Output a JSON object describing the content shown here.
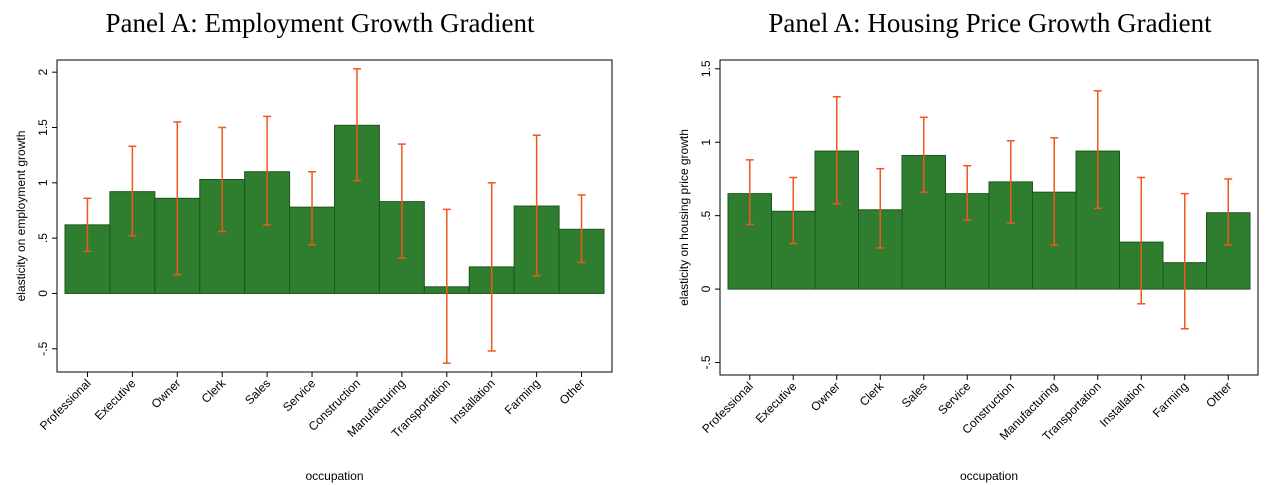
{
  "chart_data": [
    {
      "type": "bar",
      "title": "Panel A: Employment Growth Gradient",
      "xlabel": "occupation",
      "ylabel": "elasticity on employment growth",
      "categories": [
        "Professional",
        "Executive",
        "Owner",
        "Clerk",
        "Sales",
        "Service",
        "Construction",
        "Manufacturing",
        "Transportation",
        "Installation",
        "Farming",
        "Other"
      ],
      "values": [
        0.62,
        0.92,
        0.86,
        1.03,
        1.1,
        0.78,
        1.52,
        0.83,
        0.06,
        0.24,
        0.79,
        0.58
      ],
      "errors": [
        [
          0.38,
          0.86
        ],
        [
          0.52,
          1.33
        ],
        [
          0.17,
          1.55
        ],
        [
          0.56,
          1.5
        ],
        [
          0.62,
          1.6
        ],
        [
          0.44,
          1.1
        ],
        [
          1.02,
          2.03
        ],
        [
          0.32,
          1.35
        ],
        [
          -0.63,
          0.76
        ],
        [
          -0.52,
          1.0
        ],
        [
          0.16,
          1.43
        ],
        [
          0.28,
          0.89
        ]
      ],
      "color": "#2f7d2f",
      "error_color": "#f0561e",
      "ylim": [
        -0.71,
        2.11
      ],
      "yticks": [
        {
          "value": -0.5,
          "label": "-.5"
        },
        0,
        {
          "value": 0.5,
          "label": ".5"
        },
        1,
        1.5,
        2
      ]
    },
    {
      "type": "bar",
      "title": "Panel A: Housing Price Growth Gradient",
      "xlabel": "occupation",
      "ylabel": "elasticity on housing price growth",
      "categories": [
        "Professional",
        "Executive",
        "Owner",
        "Clerk",
        "Sales",
        "Service",
        "Construction",
        "Manufacturing",
        "Transportation",
        "Installation",
        "Farming",
        "Other"
      ],
      "values": [
        0.65,
        0.53,
        0.94,
        0.54,
        0.91,
        0.65,
        0.73,
        0.66,
        0.94,
        0.32,
        0.18,
        0.52
      ],
      "errors": [
        [
          0.44,
          0.88
        ],
        [
          0.31,
          0.76
        ],
        [
          0.58,
          1.31
        ],
        [
          0.28,
          0.82
        ],
        [
          0.66,
          1.17
        ],
        [
          0.47,
          0.84
        ],
        [
          0.45,
          1.01
        ],
        [
          0.3,
          1.03
        ],
        [
          0.55,
          1.35
        ],
        [
          -0.1,
          0.76
        ],
        [
          -0.27,
          0.65
        ],
        [
          0.3,
          0.75
        ]
      ],
      "color": "#2f7d2f",
      "error_color": "#f0561e",
      "ylim": [
        -0.585,
        1.56
      ],
      "yticks": [
        {
          "value": -0.5,
          "label": "-.5"
        },
        0,
        {
          "value": 0.5,
          "label": ".5"
        },
        1,
        1.5
      ]
    }
  ]
}
